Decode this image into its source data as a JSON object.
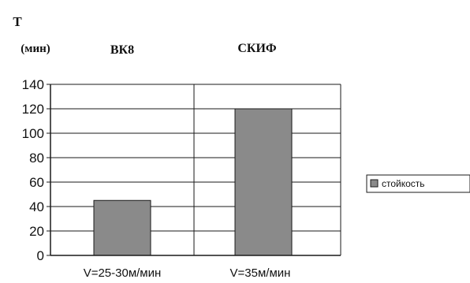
{
  "chart_data": {
    "type": "bar",
    "ylabel": "T",
    "ylabel_unit": "(мин)",
    "group_labels": [
      "ВК8",
      "СКИФ"
    ],
    "categories": [
      "V=25-30м/мин",
      "V=35м/мин"
    ],
    "series": [
      {
        "name": "стойкость",
        "values": [
          45,
          120
        ]
      }
    ],
    "ylim": [
      0,
      140
    ],
    "yticks": [
      0,
      20,
      40,
      60,
      80,
      100,
      120,
      140
    ],
    "grid": true,
    "legend": "right",
    "colors": {
      "bar_fill": "#8a8a8a",
      "bar_stroke": "#1a1a1a",
      "grid": "#1a1a1a",
      "axis": "#1a1a1a",
      "background": "#ffffff"
    }
  }
}
